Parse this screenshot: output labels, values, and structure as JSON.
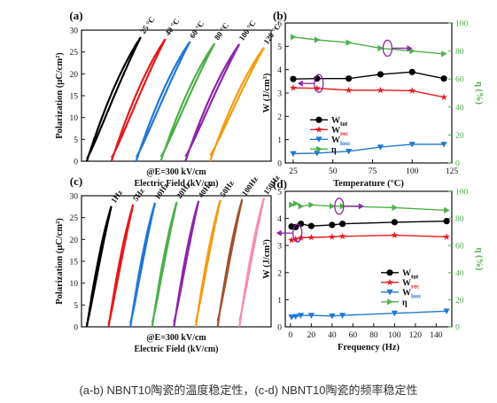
{
  "caption": "(a-b) NBNT10陶瓷的温度稳定性，(c-d) NBNT10陶瓷的频率稳定性",
  "chart_data": [
    {
      "id": "a",
      "type": "line",
      "panel_label": "(a)",
      "ylabel": "Polarization (μC/cm²)",
      "xlabel_line1": "@E=300 kV/cm",
      "xlabel_line2": "Electric Field (kV/cm)",
      "ylim": [
        0,
        30
      ],
      "yticks": [
        0,
        5,
        10,
        15,
        20,
        25,
        30
      ],
      "x_range": [
        0,
        300
      ],
      "x_shift_per_curve": 0.13,
      "series": [
        {
          "name": "25 °C",
          "color": "#000000",
          "pmax": 28.4,
          "pr": 0.6
        },
        {
          "name": "40 °C",
          "color": "#e41a1c",
          "pmax": 28.0,
          "pr": 0.8
        },
        {
          "name": "60 °C",
          "color": "#1f77d4",
          "pmax": 27.4,
          "pr": 0.9
        },
        {
          "name": "80 °C",
          "color": "#4daf4a",
          "pmax": 27.0,
          "pr": 1.0
        },
        {
          "name": "100 °C",
          "color": "#8e24aa",
          "pmax": 26.8,
          "pr": 1.1
        },
        {
          "name": "120 °C",
          "color": "#f39c12",
          "pmax": 26.0,
          "pr": 1.3
        }
      ]
    },
    {
      "id": "b",
      "type": "line",
      "panel_label": "(b)",
      "xlabel": "Temperature (°C)",
      "ylabel_left": "W (J/cm³)",
      "ylabel_right": "η (%)",
      "x": [
        25,
        40,
        60,
        80,
        100,
        120
      ],
      "xlim": [
        20,
        125
      ],
      "xticks": [
        25,
        50,
        75,
        100,
        125
      ],
      "ylim_left": [
        0,
        6
      ],
      "yticks_left": [
        0,
        1,
        2,
        3,
        4,
        5,
        6
      ],
      "ylim_right": [
        0,
        100
      ],
      "yticks_right": [
        0,
        20,
        40,
        60,
        80,
        100
      ],
      "legend": "center-left",
      "series": [
        {
          "name": "W",
          "sub": "tot",
          "axis": "left",
          "color": "#000000",
          "marker": "circle",
          "values": [
            3.6,
            3.62,
            3.62,
            3.8,
            3.9,
            3.62
          ]
        },
        {
          "name": "W",
          "sub": "rec",
          "axis": "left",
          "color": "#e41a1c",
          "marker": "star",
          "values": [
            3.22,
            3.2,
            3.12,
            3.12,
            3.1,
            2.82
          ]
        },
        {
          "name": "W",
          "sub": "loss",
          "axis": "left",
          "color": "#1f77d4",
          "marker": "triangle-down",
          "values": [
            0.4,
            0.42,
            0.5,
            0.68,
            0.8,
            0.8
          ]
        },
        {
          "name": "η",
          "sub": "",
          "axis": "right",
          "color": "#4daf4a",
          "marker": "triangle-right",
          "values": [
            90,
            88,
            86,
            82,
            80,
            78
          ]
        }
      ]
    },
    {
      "id": "c",
      "type": "line",
      "panel_label": "(c)",
      "ylabel": "Polarization (μC/cm²)",
      "xlabel_line1": "@E=300 kV/cm",
      "xlabel_line2": "Electric Field (kV/cm)",
      "ylim": [
        0,
        30
      ],
      "yticks": [
        0,
        5,
        10,
        15,
        20,
        25,
        30
      ],
      "x_range": [
        0,
        300
      ],
      "x_shift_per_curve": 0.115,
      "series": [
        {
          "name": "1Hz",
          "color": "#000000",
          "pmax": 27.6,
          "pr": 0.5
        },
        {
          "name": "5Hz",
          "color": "#e41a1c",
          "pmax": 28.0,
          "pr": 0.7
        },
        {
          "name": "10Hz",
          "color": "#1f77d4",
          "pmax": 28.4,
          "pr": 0.9
        },
        {
          "name": "20Hz",
          "color": "#4daf4a",
          "pmax": 28.6,
          "pr": 1.0
        },
        {
          "name": "40Hz",
          "color": "#8e24aa",
          "pmax": 28.8,
          "pr": 1.1
        },
        {
          "name": "50Hz",
          "color": "#f39c12",
          "pmax": 29.0,
          "pr": 1.2
        },
        {
          "name": "100Hz",
          "color": "#a0522d",
          "pmax": 29.2,
          "pr": 1.3
        },
        {
          "name": "150Hz",
          "color": "#f48fb1",
          "pmax": 29.5,
          "pr": 1.4
        }
      ]
    },
    {
      "id": "d",
      "type": "line",
      "panel_label": "(d)",
      "xlabel": "Frequency (Hz)",
      "ylabel_left": "W (J/cm³)",
      "ylabel_right": "η (%)",
      "x": [
        1,
        5,
        10,
        20,
        40,
        50,
        100,
        150
      ],
      "xlim": [
        -5,
        155
      ],
      "xticks": [
        0,
        20,
        40,
        60,
        80,
        100,
        120,
        140
      ],
      "ylim_left": [
        0,
        5
      ],
      "yticks_left": [
        0,
        1,
        2,
        3,
        4,
        5
      ],
      "ylim_right": [
        0,
        100
      ],
      "yticks_right": [
        0,
        20,
        40,
        60,
        80,
        100
      ],
      "legend": "center-right",
      "series": [
        {
          "name": "W",
          "sub": "tot",
          "axis": "left",
          "color": "#000000",
          "marker": "circle",
          "values": [
            3.7,
            3.68,
            3.8,
            3.72,
            3.76,
            3.8,
            3.86,
            3.9
          ]
        },
        {
          "name": "W",
          "sub": "rec",
          "axis": "left",
          "color": "#e41a1c",
          "marker": "star",
          "values": [
            3.2,
            3.24,
            3.28,
            3.3,
            3.32,
            3.34,
            3.38,
            3.32
          ]
        },
        {
          "name": "W",
          "sub": "loss",
          "axis": "left",
          "color": "#1f77d4",
          "marker": "triangle-down",
          "values": [
            0.36,
            0.38,
            0.42,
            0.42,
            0.4,
            0.42,
            0.5,
            0.58
          ]
        },
        {
          "name": "η",
          "sub": "",
          "axis": "right",
          "color": "#4daf4a",
          "marker": "triangle-right",
          "values": [
            90,
            91,
            89,
            90,
            89,
            89,
            88,
            86
          ]
        }
      ]
    }
  ]
}
